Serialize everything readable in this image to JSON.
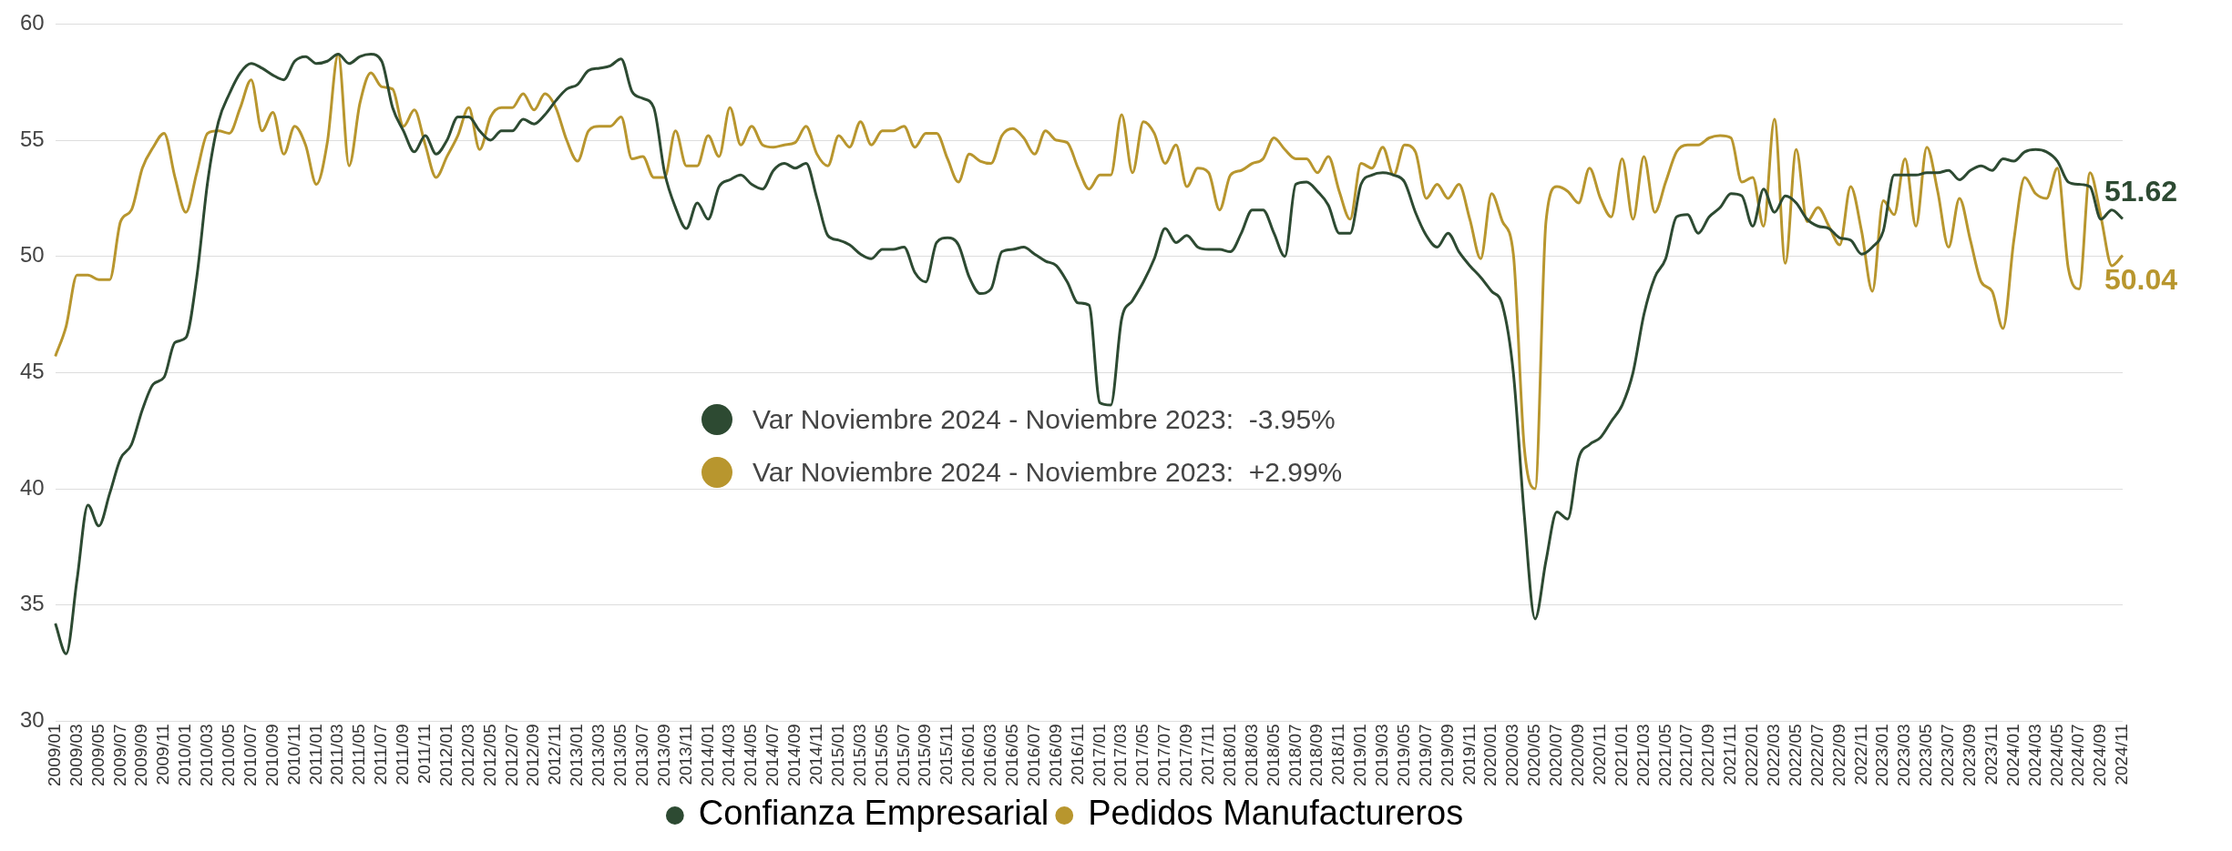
{
  "chart_data": {
    "type": "line",
    "categories": [
      "2009/01",
      null,
      "2009/03",
      null,
      "2009/05",
      null,
      "2009/07",
      null,
      "2009/09",
      null,
      "2009/11",
      null,
      "2010/01",
      null,
      "2010/03",
      null,
      "2010/05",
      null,
      "2010/07",
      null,
      "2010/09",
      null,
      "2010/11",
      null,
      "2011/01",
      null,
      "2011/03",
      null,
      "2011/05",
      null,
      "2011/07",
      null,
      "2011/09",
      null,
      "2011/11",
      null,
      "2012/01",
      null,
      "2012/03",
      null,
      "2012/05",
      null,
      "2012/07",
      null,
      "2012/09",
      null,
      "2012/11",
      null,
      "2013/01",
      null,
      "2013/03",
      null,
      "2013/05",
      null,
      "2013/07",
      null,
      "2013/09",
      null,
      "2013/11",
      null,
      "2014/01",
      null,
      "2014/03",
      null,
      "2014/05",
      null,
      "2014/07",
      null,
      "2014/09",
      null,
      "2014/11",
      null,
      "2015/01",
      null,
      "2015/03",
      null,
      "2015/05",
      null,
      "2015/07",
      null,
      "2015/09",
      null,
      "2015/11",
      null,
      "2016/01",
      null,
      "2016/03",
      null,
      "2016/05",
      null,
      "2016/07",
      null,
      "2016/09",
      null,
      "2016/11",
      null,
      "2017/01",
      null,
      "2017/03",
      null,
      "2017/05",
      null,
      "2017/07",
      null,
      "2017/09",
      null,
      "2017/11",
      null,
      "2018/01",
      null,
      "2018/03",
      null,
      "2018/05",
      null,
      "2018/07",
      null,
      "2018/09",
      null,
      "2018/11",
      null,
      "2019/01",
      null,
      "2019/03",
      null,
      "2019/05",
      null,
      "2019/07",
      null,
      "2019/09",
      null,
      "2019/11",
      null,
      "2020/01",
      null,
      "2020/03",
      null,
      "2020/05",
      null,
      "2020/07",
      null,
      "2020/09",
      null,
      "2020/11",
      null,
      "2021/01",
      null,
      "2021/03",
      null,
      "2021/05",
      null,
      "2021/07",
      null,
      "2021/09",
      null,
      "2021/11",
      null,
      "2022/01",
      null,
      "2022/03",
      null,
      "2022/05",
      null,
      "2022/07",
      null,
      "2022/09",
      null,
      "2022/11",
      null,
      "2023/01",
      null,
      "2023/03",
      null,
      "2023/05",
      null,
      "2023/07",
      null,
      "2023/09",
      null,
      "2023/11",
      null,
      "2024/01",
      null,
      "2024/03",
      null,
      "2024/05",
      null,
      "2024/07",
      null,
      "2024/09",
      null,
      "2024/11"
    ],
    "series": [
      {
        "name": "Confianza Empresarial",
        "color": "#2d4a32",
        "values": [
          34.2,
          32.9,
          36.1,
          39.3,
          38.4,
          39.8,
          41.3,
          41.9,
          43.4,
          44.5,
          44.8,
          46.3,
          46.5,
          49.1,
          53.2,
          55.8,
          57.0,
          57.9,
          58.3,
          58.1,
          57.8,
          57.6,
          58.4,
          58.6,
          58.3,
          58.4,
          58.7,
          58.3,
          58.6,
          58.7,
          58.4,
          56.4,
          55.4,
          54.5,
          55.2,
          54.4,
          55.0,
          56.0,
          56.0,
          55.4,
          55.0,
          55.4,
          55.4,
          55.9,
          55.7,
          56.1,
          56.7,
          57.2,
          57.4,
          58.0,
          58.1,
          58.2,
          58.5,
          57.1,
          56.8,
          56.4,
          53.6,
          52.1,
          51.2,
          52.3,
          51.6,
          53.0,
          53.3,
          53.5,
          53.1,
          52.9,
          53.7,
          54.0,
          53.8,
          54.0,
          52.5,
          50.9,
          50.7,
          50.5,
          50.1,
          49.9,
          50.3,
          50.3,
          50.4,
          49.3,
          48.9,
          50.6,
          50.8,
          50.5,
          49.1,
          48.4,
          48.6,
          50.2,
          50.3,
          50.4,
          50.1,
          49.8,
          49.6,
          48.9,
          48.0,
          47.9,
          43.7,
          43.6,
          47.3,
          48.1,
          48.9,
          49.9,
          51.2,
          50.6,
          50.9,
          50.4,
          50.3,
          50.3,
          50.2,
          51.0,
          52.0,
          52.0,
          51.0,
          50.0,
          53.1,
          53.2,
          52.8,
          52.2,
          51.0,
          51.0,
          53.1,
          53.5,
          53.6,
          53.5,
          53.2,
          51.9,
          50.9,
          50.4,
          51.0,
          50.2,
          49.6,
          49.1,
          48.5,
          47.9,
          45.0,
          38.9,
          34.4,
          36.9,
          39.0,
          38.7,
          41.3,
          41.9,
          42.2,
          42.9,
          43.6,
          45.0,
          47.5,
          49.1,
          49.9,
          51.7,
          51.8,
          51.0,
          51.7,
          52.1,
          52.7,
          52.6,
          51.3,
          52.9,
          51.9,
          52.6,
          52.3,
          51.6,
          51.3,
          51.2,
          50.8,
          50.7,
          50.1,
          50.4,
          51.1,
          53.5,
          53.5,
          53.5,
          53.6,
          53.6,
          53.7,
          53.3,
          53.7,
          53.9,
          53.7,
          54.2,
          54.1,
          54.5,
          54.6,
          54.5,
          54.1,
          53.2,
          53.1,
          53.0,
          51.6,
          52.0,
          51.62
        ]
      },
      {
        "name": "Pedidos Manufactureros",
        "color": "#b8962e",
        "values": [
          45.7,
          47.0,
          49.2,
          49.2,
          49.0,
          49.0,
          51.5,
          52.0,
          53.8,
          54.7,
          55.3,
          53.4,
          51.9,
          53.6,
          55.3,
          55.4,
          55.3,
          56.4,
          57.6,
          55.4,
          56.2,
          54.4,
          55.6,
          54.8,
          53.1,
          54.9,
          58.7,
          53.9,
          56.6,
          57.9,
          57.3,
          57.2,
          55.6,
          56.3,
          54.8,
          53.4,
          54.3,
          55.2,
          56.4,
          54.6,
          56.0,
          56.4,
          56.4,
          57.0,
          56.3,
          57.0,
          56.4,
          55.0,
          54.1,
          55.4,
          55.6,
          55.6,
          56.0,
          54.2,
          54.3,
          53.4,
          53.4,
          55.4,
          53.9,
          53.9,
          55.2,
          54.3,
          56.4,
          54.8,
          55.6,
          54.8,
          54.7,
          54.8,
          54.9,
          55.6,
          54.4,
          53.9,
          55.2,
          54.7,
          55.8,
          54.8,
          55.4,
          55.4,
          55.6,
          54.7,
          55.3,
          55.3,
          54.2,
          53.2,
          54.4,
          54.1,
          54.0,
          55.2,
          55.5,
          55.1,
          54.4,
          55.4,
          55.0,
          54.9,
          53.8,
          52.9,
          53.5,
          53.5,
          56.1,
          53.6,
          55.8,
          55.3,
          54.0,
          54.8,
          53.0,
          53.8,
          53.6,
          52.0,
          53.5,
          53.7,
          54.0,
          54.2,
          55.1,
          54.6,
          54.2,
          54.2,
          53.6,
          54.3,
          52.8,
          51.6,
          54.0,
          53.8,
          54.7,
          53.5,
          54.8,
          54.5,
          52.5,
          53.1,
          52.5,
          53.1,
          51.6,
          49.9,
          52.7,
          51.5,
          50.1,
          41.8,
          40.0,
          51.5,
          53.0,
          52.8,
          52.3,
          53.8,
          52.5,
          51.7,
          54.2,
          51.6,
          54.3,
          51.9,
          53.2,
          54.5,
          54.8,
          54.8,
          55.1,
          55.2,
          55.1,
          53.2,
          53.4,
          51.3,
          55.9,
          49.7,
          54.6,
          51.5,
          52.1,
          51.3,
          50.5,
          53.0,
          51.1,
          48.5,
          52.4,
          51.8,
          54.2,
          51.3,
          54.7,
          52.8,
          50.4,
          52.5,
          50.7,
          48.9,
          48.5,
          46.9,
          50.7,
          53.4,
          52.7,
          52.5,
          53.8,
          49.5,
          48.6,
          53.6,
          51.7,
          49.6,
          50.04
        ]
      }
    ],
    "ylim": [
      30,
      60
    ],
    "yticks": [
      30,
      35,
      40,
      45,
      50,
      55,
      60
    ],
    "grid": "y",
    "legend": "bottom",
    "marker": "none",
    "line_style": "solid",
    "annotations": [
      {
        "text": "51.62",
        "x": "2024/11",
        "y": 51.62
      },
      {
        "text": "50.04",
        "x": "2024/11",
        "y": 50.04
      },
      "Var Noviembre 2024 - Noviembre 2023:  -3.95%",
      "Var Noviembre 2024 - Noviembre 2023:  +2.99%"
    ]
  }
}
